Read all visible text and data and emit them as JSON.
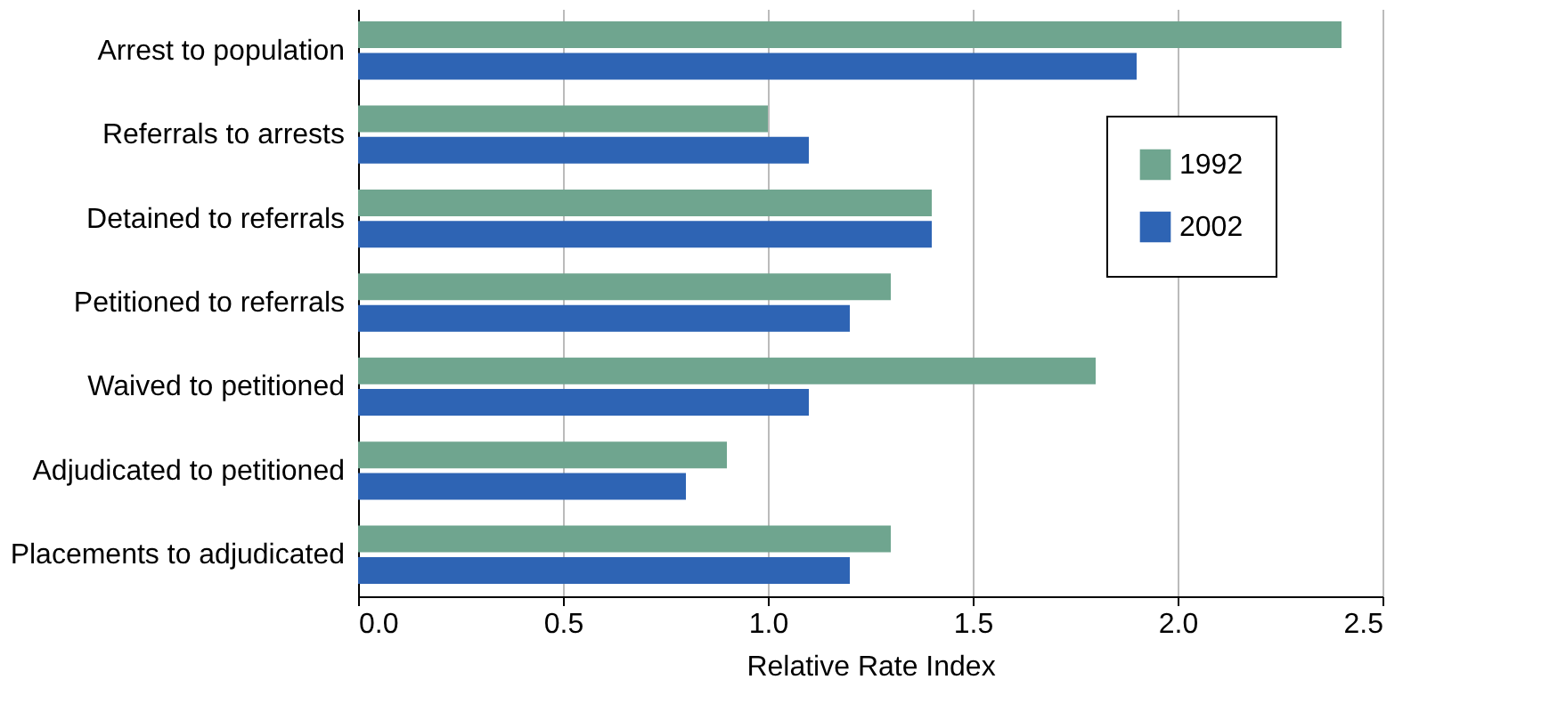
{
  "chart_data": {
    "type": "bar",
    "orientation": "horizontal",
    "xlabel": "Relative Rate Index",
    "categories": [
      "Arrest to population",
      "Referrals to arrests",
      "Detained to referrals",
      "Petitioned to referrals",
      "Waived to petitioned",
      "Adjudicated to petitioned",
      "Placements to adjudicated"
    ],
    "series": [
      {
        "name": "1992",
        "color": "#6fa58f",
        "values": [
          2.4,
          1.0,
          1.4,
          1.3,
          1.8,
          0.9,
          1.3
        ]
      },
      {
        "name": "2002",
        "color": "#2e64b4",
        "values": [
          1.9,
          1.1,
          1.4,
          1.2,
          1.1,
          0.8,
          1.2
        ]
      }
    ],
    "xlim": [
      0,
      2.5
    ],
    "xticks": [
      {
        "value": 0,
        "label": "0.0"
      },
      {
        "value": 0.5,
        "label": "0.5"
      },
      {
        "value": 1,
        "label": "1.0"
      },
      {
        "value": 1.5,
        "label": "1.5"
      },
      {
        "value": 2,
        "label": "2.0"
      },
      {
        "value": 2.5,
        "label": "2.5"
      }
    ],
    "grid": "x",
    "legend": "top right"
  }
}
